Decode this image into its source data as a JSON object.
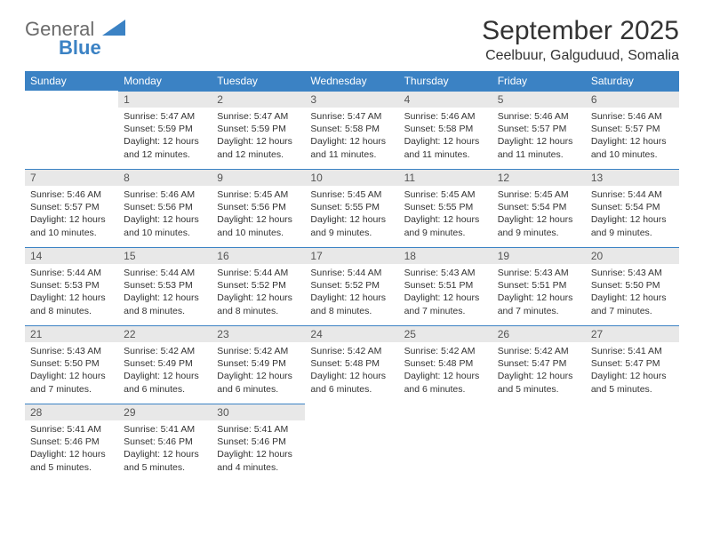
{
  "logo": {
    "text1": "General",
    "text2": "Blue"
  },
  "title": "September 2025",
  "location": "Ceelbuur, Galguduud, Somalia",
  "colors": {
    "header_bg": "#3b82c4",
    "header_text": "#ffffff",
    "daynum_bg": "#e8e8e8",
    "border": "#3b82c4",
    "text": "#333333",
    "logo_gray": "#6b6b6b",
    "logo_blue": "#3b82c4"
  },
  "weekdays": [
    "Sunday",
    "Monday",
    "Tuesday",
    "Wednesday",
    "Thursday",
    "Friday",
    "Saturday"
  ],
  "weeks": [
    [
      null,
      {
        "n": "1",
        "sr": "5:47 AM",
        "ss": "5:59 PM",
        "dl": "12 hours and 12 minutes."
      },
      {
        "n": "2",
        "sr": "5:47 AM",
        "ss": "5:59 PM",
        "dl": "12 hours and 12 minutes."
      },
      {
        "n": "3",
        "sr": "5:47 AM",
        "ss": "5:58 PM",
        "dl": "12 hours and 11 minutes."
      },
      {
        "n": "4",
        "sr": "5:46 AM",
        "ss": "5:58 PM",
        "dl": "12 hours and 11 minutes."
      },
      {
        "n": "5",
        "sr": "5:46 AM",
        "ss": "5:57 PM",
        "dl": "12 hours and 11 minutes."
      },
      {
        "n": "6",
        "sr": "5:46 AM",
        "ss": "5:57 PM",
        "dl": "12 hours and 10 minutes."
      }
    ],
    [
      {
        "n": "7",
        "sr": "5:46 AM",
        "ss": "5:57 PM",
        "dl": "12 hours and 10 minutes."
      },
      {
        "n": "8",
        "sr": "5:46 AM",
        "ss": "5:56 PM",
        "dl": "12 hours and 10 minutes."
      },
      {
        "n": "9",
        "sr": "5:45 AM",
        "ss": "5:56 PM",
        "dl": "12 hours and 10 minutes."
      },
      {
        "n": "10",
        "sr": "5:45 AM",
        "ss": "5:55 PM",
        "dl": "12 hours and 9 minutes."
      },
      {
        "n": "11",
        "sr": "5:45 AM",
        "ss": "5:55 PM",
        "dl": "12 hours and 9 minutes."
      },
      {
        "n": "12",
        "sr": "5:45 AM",
        "ss": "5:54 PM",
        "dl": "12 hours and 9 minutes."
      },
      {
        "n": "13",
        "sr": "5:44 AM",
        "ss": "5:54 PM",
        "dl": "12 hours and 9 minutes."
      }
    ],
    [
      {
        "n": "14",
        "sr": "5:44 AM",
        "ss": "5:53 PM",
        "dl": "12 hours and 8 minutes."
      },
      {
        "n": "15",
        "sr": "5:44 AM",
        "ss": "5:53 PM",
        "dl": "12 hours and 8 minutes."
      },
      {
        "n": "16",
        "sr": "5:44 AM",
        "ss": "5:52 PM",
        "dl": "12 hours and 8 minutes."
      },
      {
        "n": "17",
        "sr": "5:44 AM",
        "ss": "5:52 PM",
        "dl": "12 hours and 8 minutes."
      },
      {
        "n": "18",
        "sr": "5:43 AM",
        "ss": "5:51 PM",
        "dl": "12 hours and 7 minutes."
      },
      {
        "n": "19",
        "sr": "5:43 AM",
        "ss": "5:51 PM",
        "dl": "12 hours and 7 minutes."
      },
      {
        "n": "20",
        "sr": "5:43 AM",
        "ss": "5:50 PM",
        "dl": "12 hours and 7 minutes."
      }
    ],
    [
      {
        "n": "21",
        "sr": "5:43 AM",
        "ss": "5:50 PM",
        "dl": "12 hours and 7 minutes."
      },
      {
        "n": "22",
        "sr": "5:42 AM",
        "ss": "5:49 PM",
        "dl": "12 hours and 6 minutes."
      },
      {
        "n": "23",
        "sr": "5:42 AM",
        "ss": "5:49 PM",
        "dl": "12 hours and 6 minutes."
      },
      {
        "n": "24",
        "sr": "5:42 AM",
        "ss": "5:48 PM",
        "dl": "12 hours and 6 minutes."
      },
      {
        "n": "25",
        "sr": "5:42 AM",
        "ss": "5:48 PM",
        "dl": "12 hours and 6 minutes."
      },
      {
        "n": "26",
        "sr": "5:42 AM",
        "ss": "5:47 PM",
        "dl": "12 hours and 5 minutes."
      },
      {
        "n": "27",
        "sr": "5:41 AM",
        "ss": "5:47 PM",
        "dl": "12 hours and 5 minutes."
      }
    ],
    [
      {
        "n": "28",
        "sr": "5:41 AM",
        "ss": "5:46 PM",
        "dl": "12 hours and 5 minutes."
      },
      {
        "n": "29",
        "sr": "5:41 AM",
        "ss": "5:46 PM",
        "dl": "12 hours and 5 minutes."
      },
      {
        "n": "30",
        "sr": "5:41 AM",
        "ss": "5:46 PM",
        "dl": "12 hours and 4 minutes."
      },
      null,
      null,
      null,
      null
    ]
  ],
  "labels": {
    "sunrise": "Sunrise:",
    "sunset": "Sunset:",
    "daylight": "Daylight:"
  }
}
